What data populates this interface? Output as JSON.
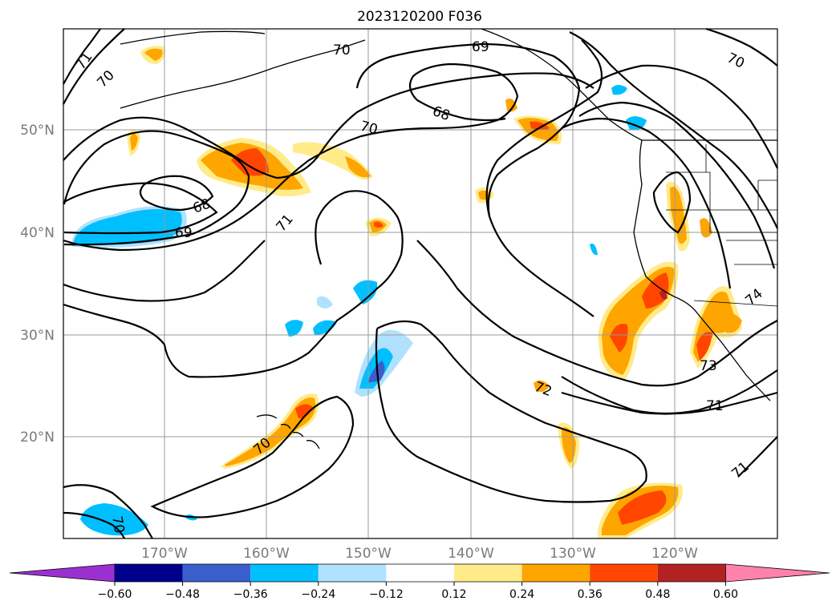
{
  "title": "2023120200 F036",
  "lat_labels": [
    "50°N",
    "40°N",
    "30°N",
    "20°N"
  ],
  "lon_labels": [
    "170°W",
    "160°W",
    "150°W",
    "140°W",
    "130°W",
    "120°W"
  ],
  "contour_labels": [
    "71",
    "70",
    "70",
    "69",
    "68",
    "70",
    "70",
    "68",
    "69",
    "71",
    "72",
    "73",
    "74",
    "71",
    "71",
    "70",
    "70"
  ],
  "colorbar": {
    "ticks": [
      "−0.60",
      "−0.48",
      "−0.36",
      "−0.24",
      "−0.12",
      "0.12",
      "0.24",
      "0.36",
      "0.48",
      "0.60"
    ],
    "colors": [
      "#9b30d0",
      "#00008b",
      "#3a5fcd",
      "#00bfff",
      "#b0e2ff",
      "#ffffff",
      "#ffeb8a",
      "#ffa500",
      "#ff4500",
      "#b22222",
      "#ff82ab"
    ]
  }
}
